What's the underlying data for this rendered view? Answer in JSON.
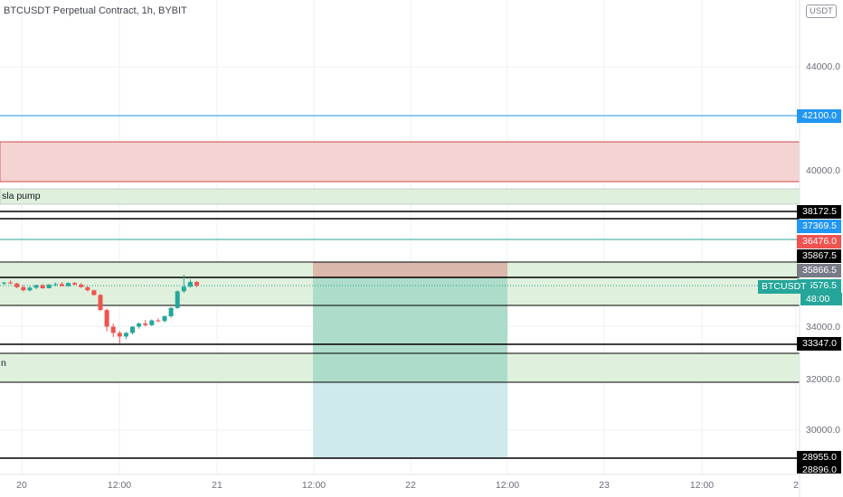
{
  "header": {
    "title": "BTCUSDT Perpetual Contract, 1h, BYBIT"
  },
  "currency_badge": "USDT",
  "y_axis_labels": [
    "44000.0",
    "40000.0",
    "34000.0",
    "32000.0",
    "30000.0"
  ],
  "x_axis_labels": [
    "20",
    "12:00",
    "21",
    "12:00",
    "22",
    "12:00",
    "23",
    "12:00",
    "2"
  ],
  "price_tags": [
    {
      "name": "level-42100",
      "text": "42100.0",
      "color": "#2196f3"
    },
    {
      "name": "level-38172",
      "text": "38172.5",
      "color": "#000000"
    },
    {
      "name": "level-37369",
      "text": "37369.5",
      "color": "#2196f3"
    },
    {
      "name": "level-36476",
      "text": "36476.0",
      "color": "#ef5350"
    },
    {
      "name": "level-35867",
      "text": "35867.5",
      "color": "#000000"
    },
    {
      "name": "level-35866",
      "text": "35866.5",
      "color": "#787b86"
    },
    {
      "name": "current-price",
      "text": "35576.5",
      "color": "#26a69a"
    },
    {
      "name": "level-33347",
      "text": "33347.0",
      "color": "#000000"
    },
    {
      "name": "level-28955",
      "text": "28955.0",
      "color": "#000000"
    },
    {
      "name": "level-28896",
      "text": "28896.0",
      "color": "#000000"
    }
  ],
  "symbol_tag": "BTCUSDT",
  "candle_timer": "48:00",
  "zone_labels": {
    "tesla_zone": "sla pump",
    "lower_zone": "n"
  },
  "colors": {
    "up": "#26a69a",
    "down": "#ef5350",
    "supply_zone": "#f4d3d3",
    "demand_zone": "#dff0dc"
  },
  "candles": [
    [
      35660,
      35720,
      35600,
      35700
    ],
    [
      35700,
      35780,
      35640,
      35660
    ],
    [
      35660,
      35690,
      35480,
      35520
    ],
    [
      35520,
      35600,
      35360,
      35400
    ],
    [
      35400,
      35560,
      35360,
      35500
    ],
    [
      35500,
      35620,
      35440,
      35600
    ],
    [
      35600,
      35640,
      35460,
      35480
    ],
    [
      35480,
      35640,
      35470,
      35620
    ],
    [
      35620,
      35700,
      35560,
      35640
    ],
    [
      35640,
      35720,
      35560,
      35560
    ],
    [
      35560,
      35700,
      35540,
      35680
    ],
    [
      35680,
      35720,
      35600,
      35620
    ],
    [
      35620,
      35680,
      35500,
      35520
    ],
    [
      35520,
      35560,
      35360,
      35400
    ],
    [
      35400,
      35420,
      35200,
      35220
    ],
    [
      35220,
      35260,
      34600,
      34640
    ],
    [
      34640,
      34700,
      33820,
      34000
    ],
    [
      34000,
      34120,
      33600,
      33760
    ],
    [
      33760,
      33840,
      33360,
      33620
    ],
    [
      33620,
      33800,
      33520,
      33760
    ],
    [
      33760,
      34020,
      33700,
      34000
    ],
    [
      34000,
      34160,
      33920,
      34120
    ],
    [
      34120,
      34260,
      34000,
      34060
    ],
    [
      34060,
      34280,
      34020,
      34240
    ],
    [
      34240,
      34320,
      34180,
      34220
    ],
    [
      34220,
      34440,
      34160,
      34400
    ],
    [
      34400,
      34760,
      34340,
      34720
    ],
    [
      34720,
      35400,
      34680,
      35360
    ],
    [
      35360,
      36000,
      35300,
      35540
    ],
    [
      35540,
      35820,
      35500,
      35720
    ],
    [
      35720,
      35760,
      35520,
      35576
    ]
  ]
}
